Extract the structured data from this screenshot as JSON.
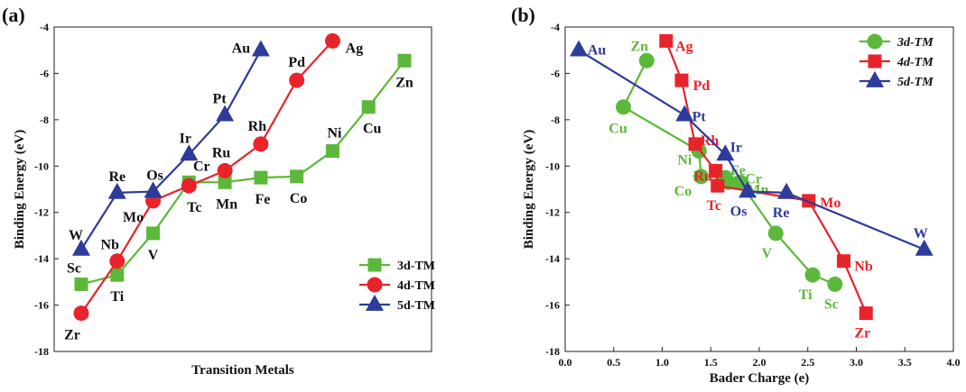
{
  "colors": {
    "3d": "#5cb83a",
    "4d": "#e8232a",
    "5d": "#2d3b9a"
  },
  "chart_data": [
    {
      "panel": "(a)",
      "type": "line",
      "xlabel": "Transition Metals",
      "ylabel": "Binding Energy (eV)",
      "ylim": [
        -18,
        -4
      ],
      "yticks": [
        "-4",
        "-6",
        "-8",
        "-10",
        "-12",
        "-14",
        "-16",
        "-18"
      ],
      "x_positions": [
        0,
        1,
        2,
        3,
        4,
        5,
        6,
        7,
        8,
        9
      ],
      "legend": {
        "placement": "bottom-right",
        "entries": [
          "3d-TM",
          "4d-TM",
          "5d-TM"
        ]
      },
      "series": [
        {
          "name": "3d-TM",
          "color_key": "3d",
          "marker": "square",
          "labels": [
            "Sc",
            "Ti",
            "V",
            "Cr",
            "Mn",
            "Fe",
            "Co",
            "Ni",
            "Cu",
            "Zn"
          ],
          "values": [
            -15.1,
            -14.7,
            -12.9,
            -10.7,
            -10.7,
            -10.5,
            -10.45,
            -9.35,
            -7.45,
            -5.45
          ]
        },
        {
          "name": "4d-TM",
          "color_key": "4d",
          "marker": "circle",
          "labels": [
            "Zr",
            "Nb",
            "Mo",
            "Tc",
            "Ru",
            "Rh",
            "Pd",
            "Ag"
          ],
          "values": [
            -16.35,
            -14.1,
            -11.5,
            -10.85,
            -10.2,
            -9.05,
            -6.3,
            -4.6
          ]
        },
        {
          "name": "5d-TM",
          "color_key": "5d",
          "marker": "triangle",
          "labels": [
            "W",
            "Re",
            "Os",
            "Ir",
            "Pt",
            "Au"
          ],
          "values": [
            -13.6,
            -11.15,
            -11.1,
            -9.5,
            -7.8,
            -5.0
          ]
        }
      ]
    },
    {
      "panel": "(b)",
      "type": "line",
      "xlabel": "Bader Charge (e)",
      "ylabel": "Binding Energy (eV)",
      "xlim": [
        0.0,
        4.0
      ],
      "ylim": [
        -18,
        -4
      ],
      "xticks": [
        "0.0",
        "0.5",
        "1.0",
        "1.5",
        "2.0",
        "2.5",
        "3.0",
        "3.5",
        "4.0"
      ],
      "yticks": [
        "-4",
        "-6",
        "-8",
        "-10",
        "-12",
        "-14",
        "-16",
        "-18"
      ],
      "legend": {
        "placement": "top-right",
        "entries": [
          "3d-TM",
          "4d-TM",
          "5d-TM"
        ]
      },
      "series": [
        {
          "name": "3d-TM",
          "color_key": "3d",
          "marker": "circle",
          "labels": [
            "Zn",
            "Cu",
            "Ni",
            "Co",
            "Fe",
            "Cr",
            "Mn",
            "V",
            "Ti",
            "Sc"
          ],
          "x": [
            0.84,
            0.6,
            1.38,
            1.4,
            1.65,
            1.68,
            1.8,
            2.17,
            2.55,
            2.78
          ],
          "y": [
            -5.45,
            -7.45,
            -9.35,
            -10.45,
            -10.5,
            -10.7,
            -10.7,
            -12.9,
            -14.7,
            -15.1
          ]
        },
        {
          "name": "4d-TM",
          "color_key": "4d",
          "marker": "square",
          "labels": [
            "Ag",
            "Pd",
            "Rh",
            "Ru",
            "Tc",
            "Mo",
            "Nb",
            "Zr"
          ],
          "x": [
            1.04,
            1.2,
            1.34,
            1.55,
            1.57,
            2.51,
            2.87,
            3.1
          ],
          "y": [
            -4.6,
            -6.3,
            -9.05,
            -10.2,
            -10.85,
            -11.5,
            -14.1,
            -16.35
          ]
        },
        {
          "name": "5d-TM",
          "color_key": "5d",
          "marker": "triangle",
          "labels": [
            "Au",
            "Pt",
            "Ir",
            "Os",
            "Re",
            "W"
          ],
          "x": [
            0.14,
            1.23,
            1.65,
            1.88,
            2.28,
            3.7
          ],
          "y": [
            -5.0,
            -7.8,
            -9.5,
            -11.1,
            -11.15,
            -13.6
          ]
        }
      ]
    }
  ]
}
